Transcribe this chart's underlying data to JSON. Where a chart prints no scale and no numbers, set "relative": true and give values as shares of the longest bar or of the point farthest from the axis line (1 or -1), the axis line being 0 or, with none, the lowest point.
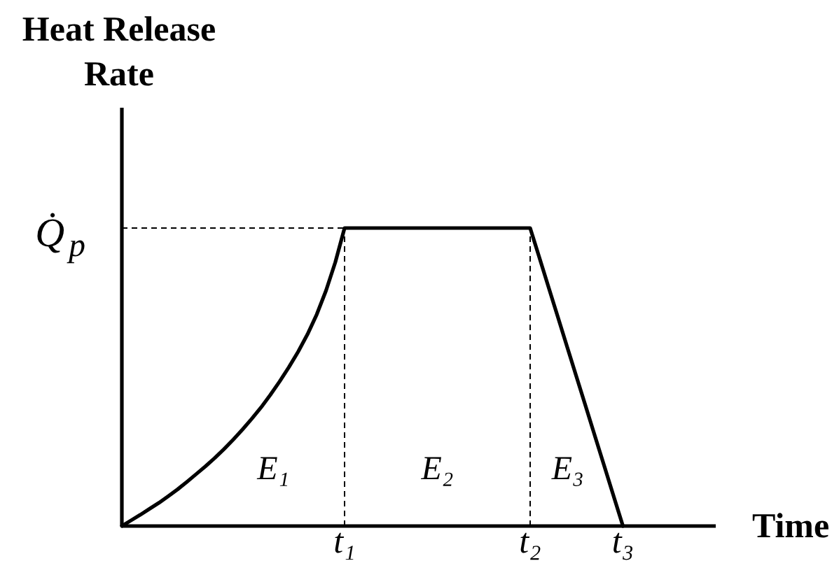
{
  "chart_data": {
    "type": "line",
    "xlabel": "Time",
    "ylabel": "Heat Release Rate",
    "relative": true,
    "categories": [
      null,
      null,
      null,
      null,
      null,
      null,
      null,
      null,
      null,
      null,
      null,
      null,
      null,
      null,
      null,
      null,
      null,
      null,
      null,
      null,
      null,
      null,
      null,
      null,
      "t₁",
      null,
      null,
      null,
      null,
      null,
      null,
      null,
      null,
      null,
      null,
      null,
      null,
      null,
      null,
      null,
      null,
      null,
      null,
      null,
      "t₂",
      null,
      null,
      null,
      null,
      null,
      null,
      null,
      null,
      null,
      "t₃",
      null,
      null,
      null,
      null,
      null,
      null,
      null,
      null,
      null,
      null
    ],
    "series": [
      {
        "color": "#000000",
        "values": [
          0,
          0.019,
          0.038,
          0.058,
          0.078,
          0.1,
          0.123,
          0.148,
          0.174,
          0.2,
          0.228,
          0.258,
          0.29,
          0.324,
          0.36,
          0.398,
          0.44,
          0.485,
          0.533,
          0.585,
          0.643,
          0.71,
          0.79,
          0.885,
          1,
          1,
          1,
          1,
          1,
          1,
          1,
          1,
          1,
          1,
          1,
          1,
          1,
          1,
          1,
          1,
          1,
          1,
          1,
          1,
          1,
          0.9,
          0.8,
          0.7,
          0.6,
          0.5,
          0.4,
          0.3,
          0.2,
          0.1,
          0,
          null,
          null,
          null,
          null,
          null,
          null,
          null,
          null,
          null,
          null
        ]
      }
    ],
    "ref_lines": [
      {
        "axis": "y",
        "value": 1,
        "label": "Q̇$_{p}$",
        "line_style": "dashed"
      },
      {
        "axis": "x",
        "value": "t₁",
        "line_style": "dashed"
      },
      {
        "axis": "x",
        "value": "t₂",
        "line_style": "dashed"
      }
    ],
    "annotations": [
      "E₁",
      "E₂",
      "E₃"
    ]
  }
}
